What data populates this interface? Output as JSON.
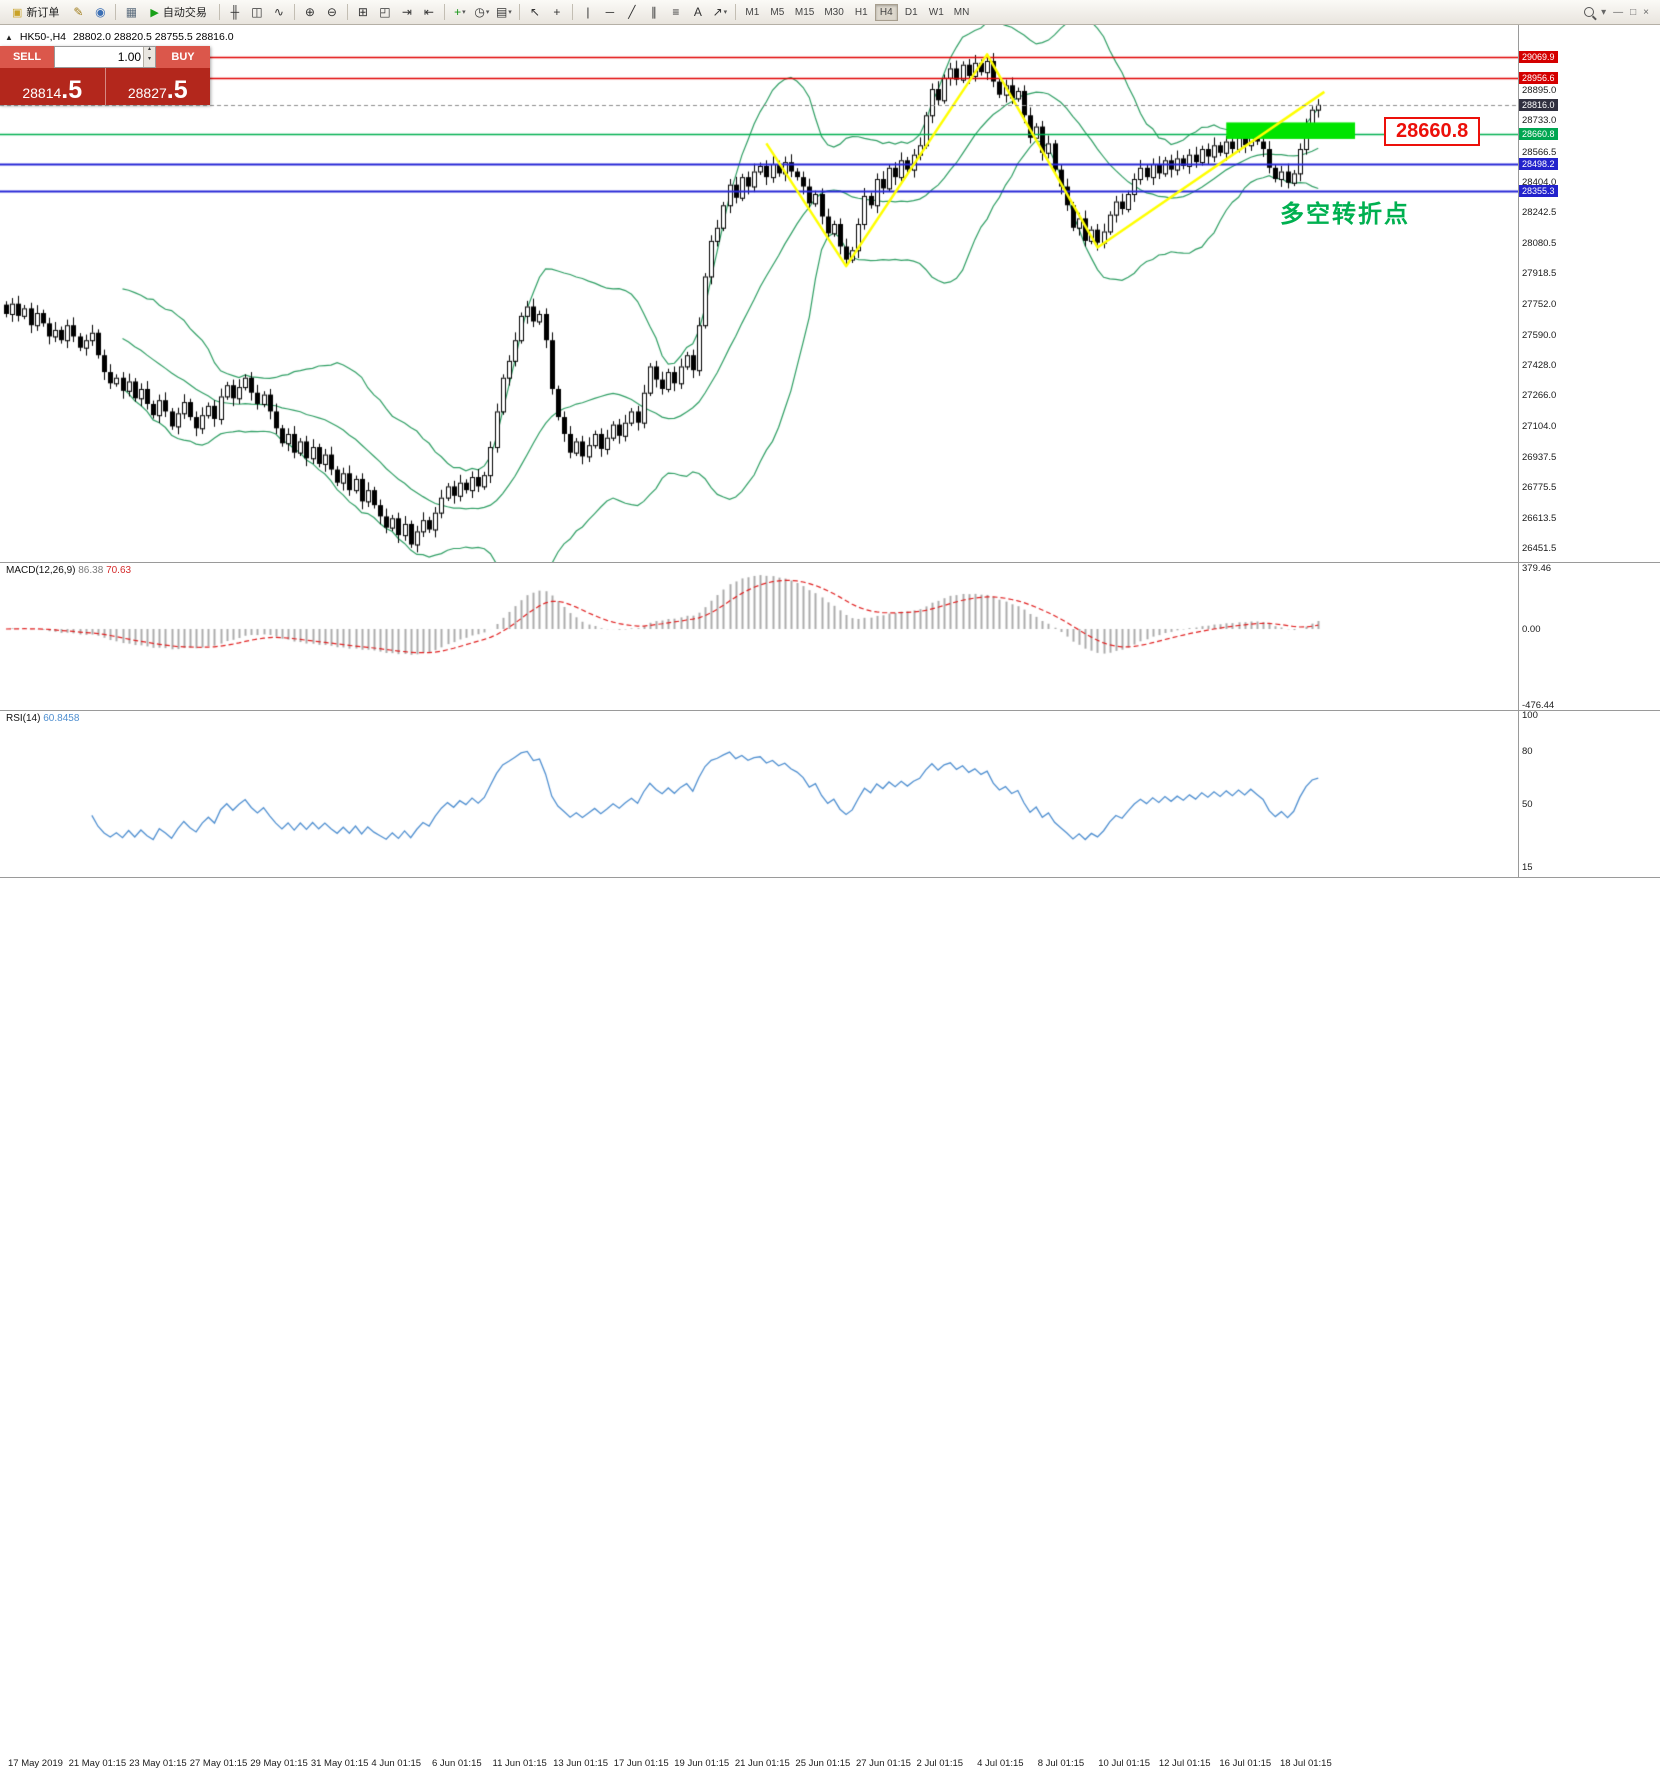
{
  "toolbar": {
    "items": [
      {
        "type": "button",
        "name": "new-order-button",
        "glyph": "▣",
        "glyph_color": "#c9a227",
        "label": "新订单"
      },
      {
        "type": "icon",
        "name": "metaeditor-icon",
        "glyph": "✎",
        "color": "#a07d1c"
      },
      {
        "type": "icon",
        "name": "community-icon",
        "glyph": "◉",
        "color": "#3b6fb5"
      },
      {
        "type": "sep"
      },
      {
        "type": "icon",
        "name": "profiles-icon",
        "glyph": "▦",
        "color": "#5a6b7c"
      },
      {
        "type": "button",
        "name": "autotrading-button",
        "glyph": "▶",
        "glyph_color": "#18a018",
        "label": "自动交易"
      },
      {
        "type": "sep"
      },
      {
        "type": "icon",
        "name": "bar-chart-icon",
        "glyph": "╫",
        "color": "#333333"
      },
      {
        "type": "icon",
        "name": "candlestick-chart-icon",
        "glyph": "◫",
        "color": "#333333"
      },
      {
        "type": "icon",
        "name": "line-chart-icon",
        "glyph": "∿",
        "color": "#333333"
      },
      {
        "type": "sep"
      },
      {
        "type": "icon",
        "name": "zoom-in-icon",
        "glyph": "⊕",
        "color": "#333333"
      },
      {
        "type": "icon",
        "name": "zoom-out-icon",
        "glyph": "⊖",
        "color": "#333333"
      },
      {
        "type": "sep"
      },
      {
        "type": "icon",
        "name": "tile-windows-icon",
        "glyph": "⊞",
        "color": "#333333"
      },
      {
        "type": "icon",
        "name": "cascade-windows-icon",
        "glyph": "◰",
        "color": "#333333"
      },
      {
        "type": "icon",
        "name": "auto-scroll-icon",
        "glyph": "⇥",
        "color": "#333333"
      },
      {
        "type": "icon",
        "name": "chart-shift-icon",
        "glyph": "⇤",
        "color": "#333333"
      },
      {
        "type": "sep"
      },
      {
        "type": "icon",
        "name": "indicators-add-icon",
        "glyph": "+",
        "color": "#149314",
        "dropdown": true
      },
      {
        "type": "icon",
        "name": "periods-icon",
        "glyph": "◷",
        "color": "#333333",
        "dropdown": true
      },
      {
        "type": "icon",
        "name": "templates-icon",
        "glyph": "▤",
        "color": "#333333",
        "dropdown": true
      },
      {
        "type": "sep"
      },
      {
        "type": "icon",
        "name": "cursor-icon",
        "glyph": "↖",
        "color": "#333333"
      },
      {
        "type": "icon",
        "name": "crosshair-icon",
        "glyph": "+",
        "color": "#333333"
      },
      {
        "type": "sep"
      },
      {
        "type": "icon",
        "name": "vertical-line-icon",
        "glyph": "|",
        "color": "#333333"
      },
      {
        "type": "icon",
        "name": "horizontal-line-icon",
        "glyph": "─",
        "color": "#333333"
      },
      {
        "type": "icon",
        "name": "trendline-icon",
        "glyph": "╱",
        "color": "#333333"
      },
      {
        "type": "icon",
        "name": "channel-icon",
        "glyph": "∥",
        "color": "#333333"
      },
      {
        "type": "icon",
        "name": "fibonacci-icon",
        "glyph": "≡",
        "color": "#333333"
      },
      {
        "type": "icon",
        "name": "text-label-icon",
        "glyph": "A",
        "color": "#333333"
      },
      {
        "type": "icon",
        "name": "arrows-icon",
        "glyph": "↗",
        "color": "#333333",
        "dropdown": true
      },
      {
        "type": "sep"
      },
      {
        "type": "timeframes"
      }
    ],
    "timeframes": [
      "M1",
      "M5",
      "M15",
      "M30",
      "H1",
      "H4",
      "D1",
      "W1",
      "MN"
    ],
    "active_timeframe": "H4",
    "right_items": [
      {
        "name": "search-icon",
        "glyph": "mag"
      },
      {
        "name": "search-caret-icon",
        "glyph": "▾"
      },
      {
        "name": "minimize-window-icon",
        "glyph": "—"
      },
      {
        "name": "restore-window-icon",
        "glyph": "□"
      },
      {
        "name": "close-window-icon",
        "glyph": "×"
      }
    ]
  },
  "chart": {
    "symbol_header": "HK50-,H4",
    "ohlc_text": "28802.0 28820.5 28755.5 28816.0",
    "trade_panel": {
      "sell_label": "SELL",
      "buy_label": "BUY",
      "volume": "1.00",
      "sell_price_main": "28814",
      "sell_price_frac": ".5",
      "buy_price_main": "28827",
      "buy_price_frac": ".5"
    },
    "annotation": "多空转折点",
    "price_label_box": "28660.8",
    "price_axis_labels": [
      "28895.0",
      "28733.0",
      "28566.5",
      "28404.0",
      "28242.5",
      "28080.5",
      "27918.5",
      "27752.0",
      "27590.0",
      "27428.0",
      "27266.0",
      "27104.0",
      "26937.5",
      "26775.5",
      "26613.5",
      "26451.5"
    ],
    "price_tags": [
      {
        "text": "29069.9",
        "price": 29069.9,
        "bg": "#d40000"
      },
      {
        "text": "28956.6",
        "price": 28956.6,
        "bg": "#d40000"
      },
      {
        "text": "28816.0",
        "price": 28816.0,
        "bg": "#30303f"
      },
      {
        "text": "28660.8",
        "price": 28660.8,
        "bg": "#00a651"
      },
      {
        "text": "28498.2",
        "price": 28498.2,
        "bg": "#2222cc"
      },
      {
        "text": "28355.3",
        "price": 28355.3,
        "bg": "#2222cc"
      }
    ],
    "hlines": [
      {
        "price": 29069.9,
        "color": "#e00000",
        "width": 1.4
      },
      {
        "price": 28956.6,
        "color": "#e00000",
        "width": 1.4
      },
      {
        "price": 28660.8,
        "color": "#00b050",
        "width": 1.6
      },
      {
        "price": 28498.2,
        "color": "#2525d6",
        "width": 2
      },
      {
        "price": 28355.3,
        "color": "#2525d6",
        "width": 2
      }
    ],
    "bid_price": 28816.0
  },
  "chart_data": {
    "type": "candlestick",
    "symbol": "HK50",
    "timeframe": "H4",
    "closes": [
      27700,
      27755,
      27690,
      27730,
      27640,
      27705,
      27650,
      27580,
      27615,
      27560,
      27640,
      27580,
      27520,
      27560,
      27600,
      27480,
      27390,
      27330,
      27360,
      27290,
      27340,
      27250,
      27300,
      27220,
      27160,
      27240,
      27180,
      27100,
      27170,
      27230,
      27150,
      27090,
      27160,
      27210,
      27140,
      27260,
      27320,
      27250,
      27310,
      27360,
      27280,
      27220,
      27270,
      27180,
      27090,
      27010,
      27060,
      26960,
      27020,
      26930,
      26990,
      26900,
      26950,
      26870,
      26800,
      26850,
      26760,
      26820,
      26700,
      26760,
      26680,
      26620,
      26560,
      26610,
      26520,
      26580,
      26470,
      26540,
      26600,
      26550,
      26640,
      26720,
      26780,
      26730,
      26800,
      26760,
      26830,
      26780,
      26840,
      26990,
      27180,
      27360,
      27450,
      27560,
      27690,
      27740,
      27660,
      27700,
      27560,
      27300,
      27150,
      27060,
      26960,
      27020,
      26940,
      27000,
      27060,
      26980,
      27040,
      27110,
      27050,
      27120,
      27180,
      27120,
      27280,
      27420,
      27350,
      27300,
      27390,
      27330,
      27420,
      27480,
      27400,
      27640,
      27900,
      28090,
      28160,
      28280,
      28390,
      28320,
      28430,
      28380,
      28460,
      28490,
      28430,
      28500,
      28450,
      28510,
      28460,
      28430,
      28380,
      28290,
      28340,
      28220,
      28130,
      28180,
      28060,
      27990,
      28040,
      28180,
      28330,
      28280,
      28420,
      28370,
      28480,
      28430,
      28520,
      28470,
      28550,
      28600,
      28760,
      28900,
      28840,
      28960,
      29010,
      28950,
      29030,
      28970,
      29040,
      28990,
      29050,
      28940,
      28870,
      28920,
      28850,
      28890,
      28760,
      28640,
      28700,
      28560,
      28610,
      28470,
      28380,
      28280,
      28160,
      28210,
      28090,
      28150,
      28080,
      28140,
      28230,
      28300,
      28260,
      28340,
      28420,
      28480,
      28430,
      28500,
      28450,
      28520,
      28470,
      28530,
      28490,
      28550,
      28510,
      28580,
      28540,
      28600,
      28560,
      28620,
      28580,
      28640,
      28600,
      28660,
      28620,
      28580,
      28480,
      28420,
      28460,
      28400,
      28450,
      28580,
      28700,
      28790,
      28816
    ],
    "bollinger": {
      "period": 20,
      "deviation": 2,
      "color": "#2e9e63"
    },
    "zigzag": {
      "color": "#ffff00",
      "points": [
        {
          "i": 124,
          "price": 28610
        },
        {
          "i": 137,
          "price": 27955
        },
        {
          "i": 160,
          "price": 29085
        },
        {
          "i": 178,
          "price": 28055
        },
        {
          "i": 215,
          "price": 28885
        }
      ]
    },
    "green_rect": {
      "i0": 199,
      "i1": 220,
      "price_top": 28722,
      "price_bottom": 28634,
      "color": "#00e400"
    },
    "macd": {
      "label": "MACD(12,26,9)",
      "value_main": "86.38",
      "value_signal": "70.63",
      "fast": 12,
      "slow": 26,
      "signal": 9,
      "hist_color": "#ababab",
      "signal_color": "#e02020",
      "axis_labels": [
        {
          "text": "379.46",
          "value": 379.46
        },
        {
          "text": "0.00",
          "value": 0
        },
        {
          "text": "-476.44",
          "value": -476.44
        }
      ]
    },
    "rsi": {
      "label": "RSI(14)",
      "period": 14,
      "value": "60.8458",
      "color": "#4f8fd0",
      "axis_labels": [
        {
          "text": "100",
          "value": 100
        },
        {
          "text": "80",
          "value": 80
        },
        {
          "text": "50",
          "value": 50
        },
        {
          "text": "15",
          "value": 15
        }
      ]
    },
    "time_labels": [
      "17 May 2019",
      "21 May 01:15",
      "23 May 01:15",
      "27 May 01:15",
      "29 May 01:15",
      "31 May 01:15",
      "4 Jun 01:15",
      "6 Jun 01:15",
      "11 Jun 01:15",
      "13 Jun 01:15",
      "17 Jun 01:15",
      "19 Jun 01:15",
      "21 Jun 01:15",
      "25 Jun 01:15",
      "27 Jun 01:15",
      "2 Jul 01:15",
      "4 Jul 01:15",
      "8 Jul 01:15",
      "10 Jul 01:15",
      "12 Jul 01:15",
      "16 Jul 01:15",
      "18 Jul 01:15"
    ]
  }
}
